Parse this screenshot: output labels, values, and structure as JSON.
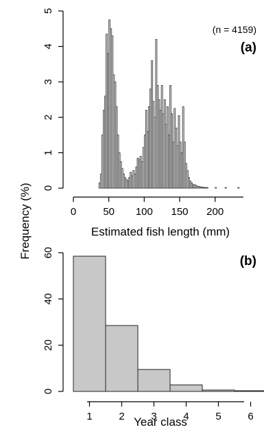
{
  "shared_ylabel": "Frequency (%)",
  "chart_data": [
    {
      "type": "bar",
      "panel": "(a)",
      "annotation": "(n = 4159)",
      "xlabel": "Estimated fish length (mm)",
      "ylabel": "Frequency (%)",
      "xlim": [
        0,
        240
      ],
      "ylim": [
        0,
        5
      ],
      "xticks": [
        0,
        50,
        100,
        150,
        200
      ],
      "yticks": [
        0,
        1,
        2,
        3,
        4,
        5
      ],
      "bin_width": 2,
      "bins": [
        {
          "x": 36,
          "y": 0.15
        },
        {
          "x": 38,
          "y": 0.4
        },
        {
          "x": 40,
          "y": 1.5
        },
        {
          "x": 42,
          "y": 2.2
        },
        {
          "x": 44,
          "y": 2.6
        },
        {
          "x": 46,
          "y": 4.35
        },
        {
          "x": 48,
          "y": 3.8
        },
        {
          "x": 50,
          "y": 4.75
        },
        {
          "x": 52,
          "y": 4.5
        },
        {
          "x": 54,
          "y": 4.3
        },
        {
          "x": 56,
          "y": 3.2
        },
        {
          "x": 58,
          "y": 3.0
        },
        {
          "x": 60,
          "y": 2.3
        },
        {
          "x": 62,
          "y": 1.5
        },
        {
          "x": 64,
          "y": 1.0
        },
        {
          "x": 66,
          "y": 0.75
        },
        {
          "x": 68,
          "y": 0.55
        },
        {
          "x": 70,
          "y": 0.4
        },
        {
          "x": 72,
          "y": 0.3
        },
        {
          "x": 74,
          "y": 0.25
        },
        {
          "x": 76,
          "y": 0.2
        },
        {
          "x": 78,
          "y": 0.3
        },
        {
          "x": 80,
          "y": 0.45
        },
        {
          "x": 82,
          "y": 0.35
        },
        {
          "x": 84,
          "y": 0.5
        },
        {
          "x": 86,
          "y": 0.4
        },
        {
          "x": 88,
          "y": 0.6
        },
        {
          "x": 90,
          "y": 0.85
        },
        {
          "x": 92,
          "y": 0.8
        },
        {
          "x": 94,
          "y": 0.9
        },
        {
          "x": 96,
          "y": 0.75
        },
        {
          "x": 98,
          "y": 1.15
        },
        {
          "x": 100,
          "y": 1.5
        },
        {
          "x": 102,
          "y": 2.2
        },
        {
          "x": 104,
          "y": 1.6
        },
        {
          "x": 106,
          "y": 2.3
        },
        {
          "x": 108,
          "y": 2.8
        },
        {
          "x": 110,
          "y": 3.6
        },
        {
          "x": 112,
          "y": 2.45
        },
        {
          "x": 114,
          "y": 2.0
        },
        {
          "x": 116,
          "y": 4.2
        },
        {
          "x": 118,
          "y": 2.9
        },
        {
          "x": 120,
          "y": 2.5
        },
        {
          "x": 122,
          "y": 2.2
        },
        {
          "x": 124,
          "y": 2.9
        },
        {
          "x": 126,
          "y": 2.1
        },
        {
          "x": 128,
          "y": 2.5
        },
        {
          "x": 130,
          "y": 1.8
        },
        {
          "x": 132,
          "y": 2.3
        },
        {
          "x": 134,
          "y": 1.5
        },
        {
          "x": 136,
          "y": 2.9
        },
        {
          "x": 138,
          "y": 2.1
        },
        {
          "x": 140,
          "y": 1.3
        },
        {
          "x": 142,
          "y": 2.25
        },
        {
          "x": 144,
          "y": 1.7
        },
        {
          "x": 146,
          "y": 1.2
        },
        {
          "x": 148,
          "y": 2.05
        },
        {
          "x": 150,
          "y": 1.3
        },
        {
          "x": 152,
          "y": 1.0
        },
        {
          "x": 154,
          "y": 2.3
        },
        {
          "x": 156,
          "y": 1.3
        },
        {
          "x": 158,
          "y": 0.7
        },
        {
          "x": 160,
          "y": 0.5
        },
        {
          "x": 162,
          "y": 0.3
        },
        {
          "x": 164,
          "y": 0.2
        },
        {
          "x": 166,
          "y": 0.15
        },
        {
          "x": 168,
          "y": 0.1
        },
        {
          "x": 170,
          "y": 0.1
        },
        {
          "x": 172,
          "y": 0.08
        },
        {
          "x": 174,
          "y": 0.06
        },
        {
          "x": 176,
          "y": 0.05
        },
        {
          "x": 178,
          "y": 0.04
        },
        {
          "x": 180,
          "y": 0.03
        },
        {
          "x": 182,
          "y": 0.03
        },
        {
          "x": 184,
          "y": 0.02
        },
        {
          "x": 186,
          "y": 0.02
        },
        {
          "x": 188,
          "y": 0.02
        },
        {
          "x": 200,
          "y": 0.02
        },
        {
          "x": 214,
          "y": 0.02
        },
        {
          "x": 232,
          "y": 0.02
        }
      ],
      "bar_fill": "#d4d4d4",
      "bar_stroke": "#222222"
    },
    {
      "type": "bar",
      "panel": "(b)",
      "xlabel": "Year class",
      "ylabel": "Frequency (%)",
      "categories": [
        "1",
        "2",
        "3",
        "4",
        "5",
        "6"
      ],
      "values": [
        58.5,
        28.5,
        9.5,
        2.8,
        0.6,
        0.3
      ],
      "ylim": [
        0,
        60
      ],
      "yticks": [
        0,
        20,
        40,
        60
      ],
      "bar_fill": "#c8c8c8",
      "bar_stroke": "#222222"
    }
  ]
}
